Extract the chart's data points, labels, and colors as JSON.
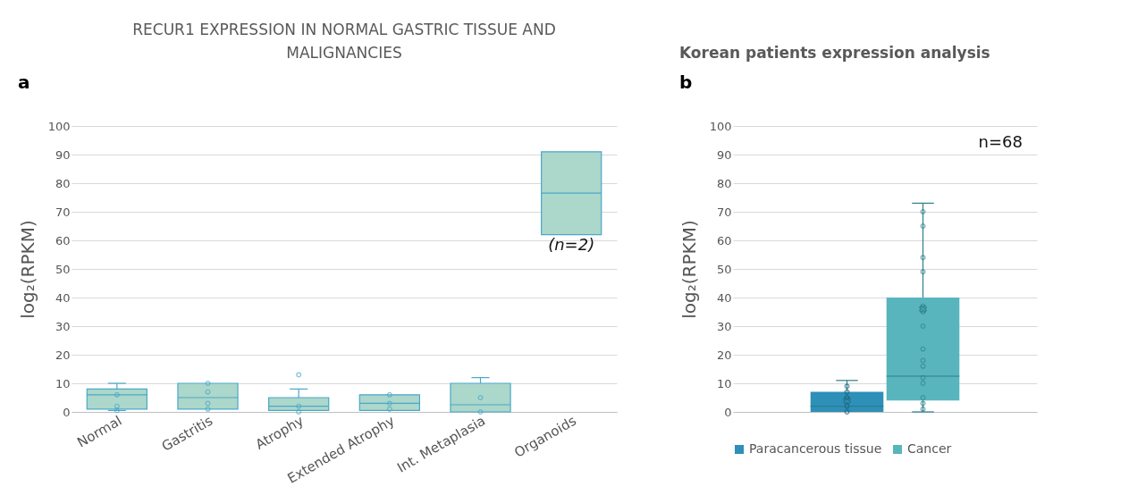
{
  "chart_data": [
    {
      "type": "box",
      "title": "RECUR1 EXPRESSION IN NORMAL GASTRIC TISSUE AND MALIGNANCIES",
      "ylabel": "log₂(RPKM)",
      "color": "#acd7cb",
      "categories": [
        "Normal",
        "Gastritis",
        "Atrophy",
        "Extended Atrophy",
        "Int. Metaplasia",
        "Organoids"
      ],
      "boxes": [
        {
          "low": 0.5,
          "q1": 1,
          "median": 6,
          "q3": 8,
          "high": 10
        },
        {
          "low": 1,
          "q1": 1,
          "median": 5,
          "q3": 10,
          "high": 10
        },
        {
          "low": 0.5,
          "q1": 0.5,
          "median": 2,
          "q3": 5,
          "high": 8,
          "outliers": [
            13
          ]
        },
        {
          "low": 0.5,
          "q1": 0.5,
          "median": 3,
          "q3": 6,
          "high": 6
        },
        {
          "low": 0,
          "q1": 0,
          "median": 2.5,
          "q3": 10,
          "high": 12
        },
        {
          "low": 62,
          "q1": 62,
          "median": 76.5,
          "q3": 91,
          "high": 91
        }
      ],
      "series": [
        {
          "type": "scatter",
          "color": "#4aa8c8",
          "x": [
            "Normal",
            "Normal",
            "Normal",
            "Gastritis",
            "Gastritis",
            "Gastritis",
            "Gastritis",
            "Atrophy",
            "Atrophy",
            "Extended Atrophy",
            "Extended Atrophy",
            "Extended Atrophy",
            "Int. Metaplasia",
            "Int. Metaplasia"
          ],
          "values": [
            6,
            2,
            0.5,
            10,
            7,
            3,
            1,
            2,
            0,
            6,
            3,
            1,
            5,
            0
          ]
        }
      ],
      "marker": "circle",
      "ylim": [
        0,
        100
      ],
      "yticks": [
        0,
        10,
        20,
        30,
        40,
        50,
        60,
        70,
        80,
        90,
        100
      ],
      "grid": "y",
      "annotations": [
        "a",
        "(n=2)"
      ]
    },
    {
      "type": "box",
      "title": "Korean patients expression analysis",
      "ylabel": "log₂(RPKM)",
      "categories": [
        null
      ],
      "series": [
        {
          "name": "Paracancerous tissue",
          "color": "#2e8fb8",
          "boxes": [
            {
              "low": 0,
              "q1": 0,
              "median": 2,
              "q3": 7,
              "high": 11,
              "mean": 4
            }
          ]
        },
        {
          "name": "Cancer",
          "color": "#58b5be",
          "boxes": [
            {
              "low": 0,
              "q1": 4,
              "median": 12.5,
              "q3": 40,
              "high": 73,
              "mean": 36
            }
          ]
        },
        {
          "type": "scatter",
          "color": "#1a5f78",
          "x": [
            null,
            null,
            null,
            null,
            null
          ],
          "values": [
            9,
            7,
            5,
            2,
            0
          ]
        },
        {
          "type": "scatter",
          "color": "#2f8690",
          "x": [
            null,
            null,
            null,
            null,
            null,
            null,
            null,
            null,
            null,
            null,
            null,
            null,
            null,
            null,
            null
          ],
          "values": [
            70,
            65,
            54,
            49,
            37,
            35,
            30,
            22,
            18,
            16,
            12,
            10,
            5,
            3,
            1
          ]
        }
      ],
      "marker": "circle",
      "ylim": [
        0,
        100
      ],
      "yticks": [
        0,
        10,
        20,
        30,
        40,
        50,
        60,
        70,
        80,
        90,
        100
      ],
      "grid": "y",
      "legend": "bottom",
      "annotations": [
        "b",
        "n=68"
      ]
    }
  ]
}
